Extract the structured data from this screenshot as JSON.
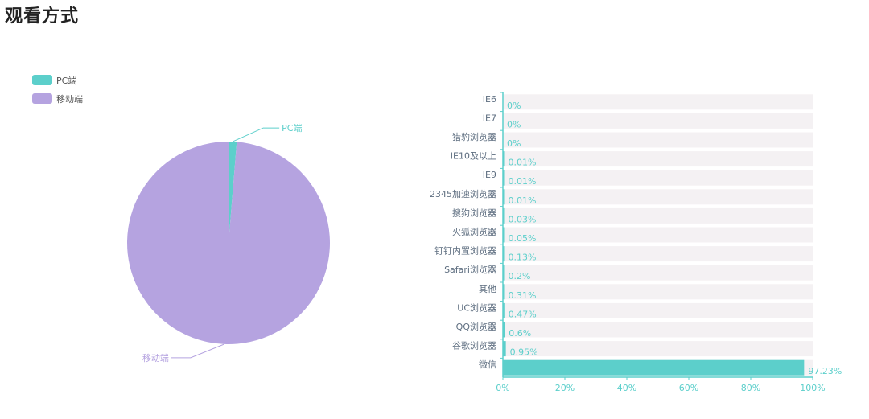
{
  "page": {
    "title": "观看方式"
  },
  "colors": {
    "teal": "#5ccfcb",
    "purple": "#b5a3e0",
    "track": "#f4f1f3",
    "axis": "#5ccfcb"
  },
  "chart_data": [
    {
      "type": "pie",
      "legend": [
        "PC端",
        "移动端"
      ],
      "legend_position": "top-left",
      "slices": [
        {
          "name": "PC端",
          "value": 1.3,
          "color": "#5ccfcb"
        },
        {
          "name": "移动端",
          "value": 98.7,
          "color": "#b5a3e0"
        }
      ]
    },
    {
      "type": "bar",
      "orientation": "horizontal",
      "categories": [
        "IE6",
        "IE7",
        "猎豹浏览器",
        "IE10及以上",
        "IE9",
        "2345加速浏览器",
        "搜狗浏览器",
        "火狐浏览器",
        "钉钉内置浏览器",
        "Safari浏览器",
        "其他",
        "UC浏览器",
        "QQ浏览器",
        "谷歌浏览器",
        "微信"
      ],
      "values": [
        0,
        0,
        0,
        0.01,
        0.01,
        0.01,
        0.03,
        0.05,
        0.13,
        0.2,
        0.31,
        0.47,
        0.6,
        0.95,
        97.23
      ],
      "value_labels": [
        "0%",
        "0%",
        "0%",
        "0.01%",
        "0.01%",
        "0.01%",
        "0.03%",
        "0.05%",
        "0.13%",
        "0.2%",
        "0.31%",
        "0.47%",
        "0.6%",
        "0.95%",
        "97.23%"
      ],
      "x_ticks": [
        "0%",
        "20%",
        "40%",
        "60%",
        "80%",
        "100%"
      ],
      "xlim": [
        0,
        100
      ],
      "grid": false
    }
  ]
}
